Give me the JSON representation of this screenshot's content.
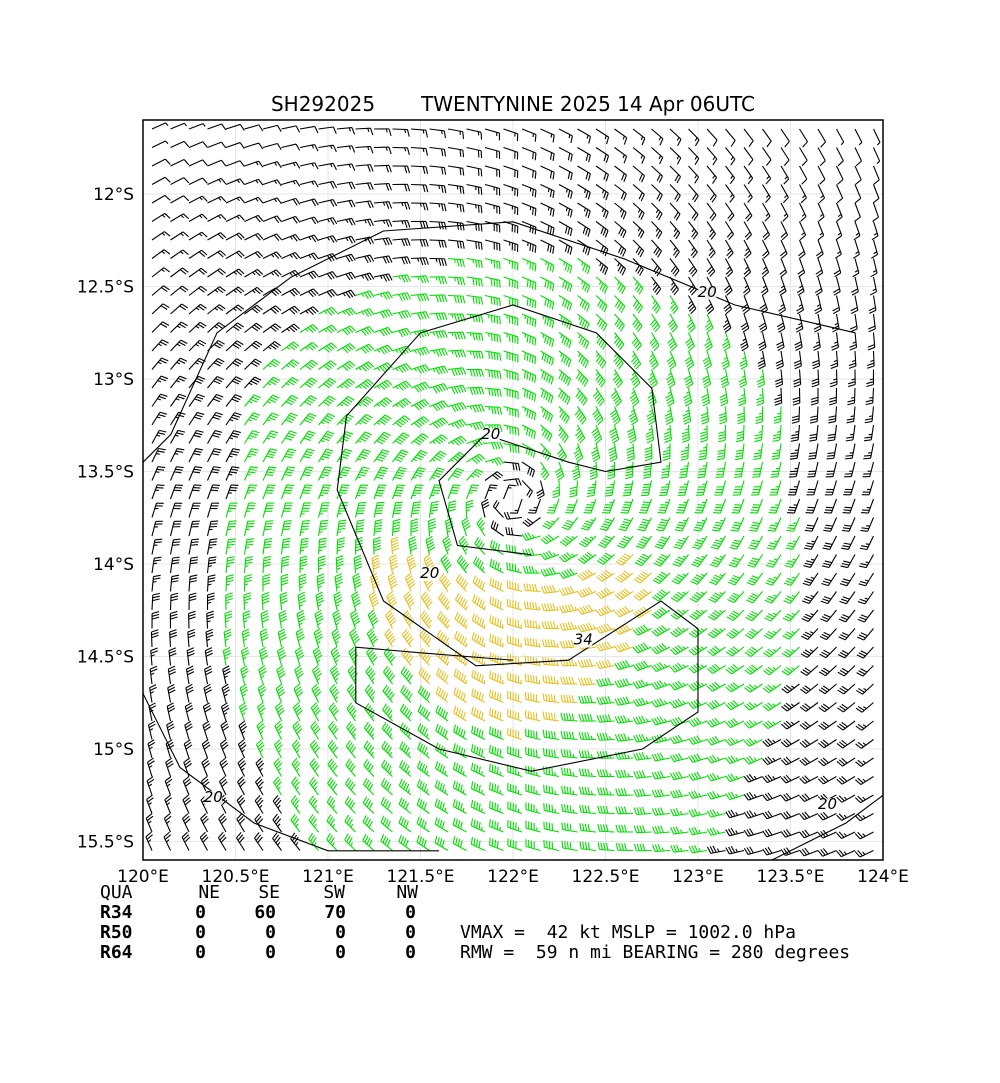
{
  "title": {
    "storm_id": "SH292025",
    "storm_label": "TWENTYNINE 2025 14 Apr 06UTC"
  },
  "map": {
    "lon_range": [
      120,
      124
    ],
    "lat_range": [
      -15.6,
      -11.6
    ],
    "x_ticks": [
      {
        "value": 120,
        "label": "120°E"
      },
      {
        "value": 120.5,
        "label": "120.5°E"
      },
      {
        "value": 121,
        "label": "121°E"
      },
      {
        "value": 121.5,
        "label": "121.5°E"
      },
      {
        "value": 122,
        "label": "122°E"
      },
      {
        "value": 122.5,
        "label": "122.5°E"
      },
      {
        "value": 123,
        "label": "123°E"
      },
      {
        "value": 123.5,
        "label": "123.5°E"
      },
      {
        "value": 124,
        "label": "124°E"
      }
    ],
    "y_ticks": [
      {
        "value": -12,
        "label": "12°S"
      },
      {
        "value": -12.5,
        "label": "12.5°S"
      },
      {
        "value": -13,
        "label": "13°S"
      },
      {
        "value": -13.5,
        "label": "13.5°S"
      },
      {
        "value": -14,
        "label": "14°S"
      },
      {
        "value": -14.5,
        "label": "14.5°S"
      },
      {
        "value": -15,
        "label": "15°S"
      },
      {
        "value": -15.5,
        "label": "15.5°S"
      }
    ],
    "gridlines": true,
    "center": {
      "lon": 122.0,
      "lat": -13.65
    },
    "wind_colors": {
      "below_34kt": "#000000",
      "34_to_50kt": "#00e000",
      "50_plus_kt": "#e8c020"
    },
    "contour_labels": [
      {
        "text": "20",
        "lon": 123.05,
        "lat": -12.55
      },
      {
        "text": "20",
        "lon": 121.88,
        "lat": -13.32
      },
      {
        "text": "20",
        "lon": 121.55,
        "lat": -14.07
      },
      {
        "text": "34",
        "lon": 122.38,
        "lat": -14.43
      },
      {
        "text": "20",
        "lon": 120.38,
        "lat": -15.28
      },
      {
        "text": "20",
        "lon": 123.7,
        "lat": -15.32
      }
    ]
  },
  "wind_radii_table": {
    "header": [
      "QUA",
      "NE",
      "SE",
      "SW",
      "NW"
    ],
    "rows": [
      {
        "label": "R34",
        "values": [
          "0",
          "60",
          "70",
          "0"
        ]
      },
      {
        "label": "R50",
        "values": [
          "0",
          "0",
          "0",
          "0"
        ]
      },
      {
        "label": "R64",
        "values": [
          "0",
          "0",
          "0",
          "0"
        ]
      }
    ]
  },
  "storm_info": {
    "line1": "VMAX =  42 kt MSLP = 1002.0 hPa",
    "line2": "RMW =  59 n mi BEARING = 280 degrees"
  }
}
